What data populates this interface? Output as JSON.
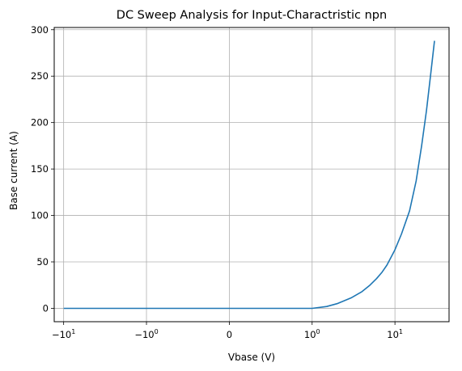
{
  "chart_data": {
    "type": "line",
    "title": "DC Sweep Analysis for Input-Charactristic npn",
    "xlabel": "Vbase (V)",
    "ylabel": "Base current (A)",
    "x_scale": "symlog",
    "xlim": [
      -13,
      45
    ],
    "ylim": [
      -14.4,
      302.4
    ],
    "grid": true,
    "x_ticks": [
      {
        "value": -10,
        "label": "−10",
        "exp": "1"
      },
      {
        "value": -1,
        "label": "−10",
        "exp": "0"
      },
      {
        "value": 0,
        "label": "0",
        "exp": ""
      },
      {
        "value": 1,
        "label": "10",
        "exp": "0"
      },
      {
        "value": 10,
        "label": "10",
        "exp": "1"
      }
    ],
    "y_ticks": [
      0,
      50,
      100,
      150,
      200,
      250,
      300
    ],
    "series": [
      {
        "color": "#1f77b4",
        "x": [
          -10,
          -5,
          -1,
          0,
          1,
          1.5,
          2,
          3,
          4,
          5,
          6,
          7,
          8,
          10,
          12,
          15,
          18,
          21,
          24,
          27,
          30
        ],
        "y": [
          0,
          0,
          0,
          0,
          0,
          2.0,
          5.0,
          11.5,
          18.0,
          25.0,
          32.0,
          39.0,
          46.5,
          63.0,
          80.0,
          105.0,
          137.0,
          175.0,
          213.0,
          252.0,
          288.0
        ]
      }
    ]
  }
}
